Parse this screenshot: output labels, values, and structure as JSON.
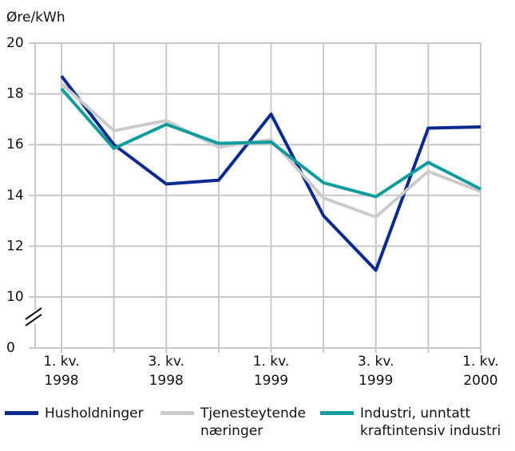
{
  "chart_data": {
    "type": "line",
    "y_label": "Øre/kWh",
    "categories": [
      [
        "1. kv.",
        "1998"
      ],
      null,
      [
        "3. kv.",
        "1998"
      ],
      null,
      [
        "1. kv.",
        "1999"
      ],
      null,
      [
        "3. kv.",
        "1999"
      ],
      null,
      [
        "1. kv.",
        "2000"
      ]
    ],
    "series": [
      {
        "name": "Husholdninger",
        "color": "#0b2a8f",
        "values": [
          18.7,
          16.0,
          14.45,
          14.6,
          17.2,
          13.2,
          11.05,
          16.65,
          16.7
        ]
      },
      {
        "name": "Tjenesteytende næringer",
        "color": "#cbcbcb",
        "values": [
          18.4,
          16.55,
          16.95,
          15.9,
          16.2,
          13.9,
          13.15,
          14.95,
          14.15
        ]
      },
      {
        "name": "Industri, unntatt kraftintensiv industri",
        "color": "#109c9c",
        "values": [
          18.2,
          15.85,
          16.8,
          16.05,
          16.1,
          14.5,
          13.95,
          15.3,
          14.25
        ]
      }
    ],
    "ylim": [
      0,
      20
    ],
    "axis_break": [
      0,
      10
    ],
    "yticks": [
      0,
      10,
      12,
      14,
      16,
      18,
      20
    ],
    "grid": true
  }
}
